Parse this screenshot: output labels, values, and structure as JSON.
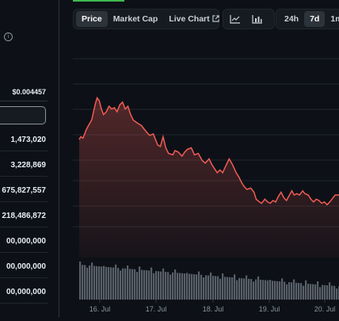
{
  "left_panel": {
    "price_value": "$0.004457",
    "stats": [
      {
        "value": "1,473,020",
        "has_chevron": true
      },
      {
        "value": "3,228,869",
        "has_chevron": true
      },
      {
        "value": "675,827,557",
        "has_chevron": false
      },
      {
        "value": "218,486,872",
        "has_chevron": false
      },
      {
        "value": "00,000,000",
        "has_chevron": false
      },
      {
        "value": "00,000,000",
        "has_chevron": false
      },
      {
        "value": "00,000,000",
        "has_chevron": false
      }
    ]
  },
  "toolbar": {
    "tabs": [
      {
        "label": "Price",
        "active": true
      },
      {
        "label": "Market Cap",
        "active": false
      },
      {
        "label": "Live Chart",
        "active": false
      }
    ],
    "chart_type_icons": [
      "line-chart-icon",
      "bar-chart-icon"
    ],
    "ranges": [
      {
        "label": "24h",
        "active": false
      },
      {
        "label": "7d",
        "active": true
      },
      {
        "label": "1m",
        "active": false
      }
    ]
  },
  "chart_data": {
    "type": "line",
    "x_ticks": [
      "16. Jul",
      "17. Jul",
      "18. Jul",
      "19. Jul",
      "20. Jul"
    ],
    "x_range": [
      15.55,
      20.35
    ],
    "y_range": [
      0,
      100
    ],
    "line_color": "#f25c54",
    "volume_color": "#586069",
    "series": [
      {
        "x": 15.55,
        "y": 48
      },
      {
        "x": 15.58,
        "y": 50
      },
      {
        "x": 15.62,
        "y": 49
      },
      {
        "x": 15.68,
        "y": 55
      },
      {
        "x": 15.72,
        "y": 58
      },
      {
        "x": 15.78,
        "y": 62
      },
      {
        "x": 15.85,
        "y": 74
      },
      {
        "x": 15.88,
        "y": 78
      },
      {
        "x": 15.92,
        "y": 76
      },
      {
        "x": 15.96,
        "y": 70
      },
      {
        "x": 16.0,
        "y": 66
      },
      {
        "x": 16.05,
        "y": 68
      },
      {
        "x": 16.1,
        "y": 72
      },
      {
        "x": 16.15,
        "y": 70
      },
      {
        "x": 16.2,
        "y": 71
      },
      {
        "x": 16.25,
        "y": 68
      },
      {
        "x": 16.3,
        "y": 73
      },
      {
        "x": 16.35,
        "y": 75
      },
      {
        "x": 16.4,
        "y": 70
      },
      {
        "x": 16.45,
        "y": 72
      },
      {
        "x": 16.5,
        "y": 66
      },
      {
        "x": 16.55,
        "y": 62
      },
      {
        "x": 16.62,
        "y": 60
      },
      {
        "x": 16.7,
        "y": 58
      },
      {
        "x": 16.78,
        "y": 54
      },
      {
        "x": 16.85,
        "y": 51
      },
      {
        "x": 16.92,
        "y": 52
      },
      {
        "x": 17.0,
        "y": 44
      },
      {
        "x": 17.05,
        "y": 43
      },
      {
        "x": 17.1,
        "y": 50
      },
      {
        "x": 17.15,
        "y": 42
      },
      {
        "x": 17.2,
        "y": 38
      },
      {
        "x": 17.28,
        "y": 37
      },
      {
        "x": 17.32,
        "y": 40
      },
      {
        "x": 17.38,
        "y": 39
      },
      {
        "x": 17.45,
        "y": 36
      },
      {
        "x": 17.5,
        "y": 39
      },
      {
        "x": 17.55,
        "y": 41
      },
      {
        "x": 17.62,
        "y": 42
      },
      {
        "x": 17.68,
        "y": 37
      },
      {
        "x": 17.75,
        "y": 38
      },
      {
        "x": 17.82,
        "y": 33
      },
      {
        "x": 17.88,
        "y": 31
      },
      {
        "x": 17.95,
        "y": 34
      },
      {
        "x": 18.0,
        "y": 30
      },
      {
        "x": 18.05,
        "y": 27
      },
      {
        "x": 18.1,
        "y": 24
      },
      {
        "x": 18.15,
        "y": 26
      },
      {
        "x": 18.2,
        "y": 24
      },
      {
        "x": 18.27,
        "y": 30
      },
      {
        "x": 18.32,
        "y": 34
      },
      {
        "x": 18.38,
        "y": 30
      },
      {
        "x": 18.45,
        "y": 24
      },
      {
        "x": 18.5,
        "y": 21
      },
      {
        "x": 18.55,
        "y": 17
      },
      {
        "x": 18.6,
        "y": 14
      },
      {
        "x": 18.65,
        "y": 12
      },
      {
        "x": 18.72,
        "y": 13
      },
      {
        "x": 18.78,
        "y": 10
      },
      {
        "x": 18.82,
        "y": 5
      },
      {
        "x": 18.88,
        "y": 3
      },
      {
        "x": 18.92,
        "y": 2
      },
      {
        "x": 18.98,
        "y": 5
      },
      {
        "x": 19.03,
        "y": 3
      },
      {
        "x": 19.08,
        "y": 2
      },
      {
        "x": 19.13,
        "y": 4
      },
      {
        "x": 19.18,
        "y": 3
      },
      {
        "x": 19.23,
        "y": 7
      },
      {
        "x": 19.28,
        "y": 10
      },
      {
        "x": 19.33,
        "y": 6
      },
      {
        "x": 19.38,
        "y": 4
      },
      {
        "x": 19.42,
        "y": 7
      },
      {
        "x": 19.48,
        "y": 11
      },
      {
        "x": 19.52,
        "y": 8
      },
      {
        "x": 19.57,
        "y": 9
      },
      {
        "x": 19.62,
        "y": 8
      },
      {
        "x": 19.68,
        "y": 11
      },
      {
        "x": 19.72,
        "y": 9
      },
      {
        "x": 19.78,
        "y": 8
      },
      {
        "x": 19.83,
        "y": 5
      },
      {
        "x": 19.88,
        "y": 3
      },
      {
        "x": 19.93,
        "y": 5
      },
      {
        "x": 19.98,
        "y": 4
      },
      {
        "x": 20.03,
        "y": 2
      },
      {
        "x": 20.08,
        "y": 3
      },
      {
        "x": 20.13,
        "y": 1
      },
      {
        "x": 20.18,
        "y": 3
      },
      {
        "x": 20.22,
        "y": 5
      },
      {
        "x": 20.28,
        "y": 8
      },
      {
        "x": 20.35,
        "y": 8
      }
    ]
  }
}
